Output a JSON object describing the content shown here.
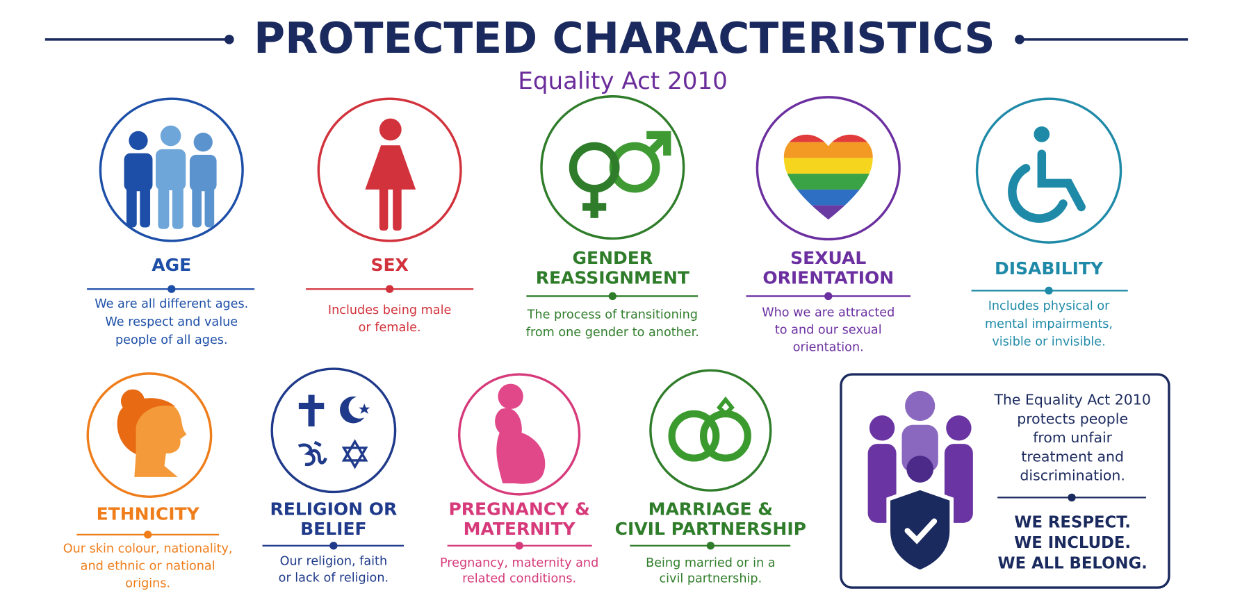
{
  "header": {
    "title": "PROTECTED CHARACTERISTICS",
    "subtitle": "Equality Act 2010"
  },
  "items": [
    {
      "title": [
        "AGE"
      ],
      "description": [
        "We are all different ages.",
        "We respect and value",
        "people of all ages."
      ],
      "color": "#1d4fa8"
    },
    {
      "title": [
        "SEX"
      ],
      "description": [
        "Includes being male",
        "or female."
      ],
      "color": "#d2323c"
    },
    {
      "title": [
        "GENDER",
        "REASSIGNMENT"
      ],
      "description": [
        "The process of transitioning",
        "from one gender to another."
      ],
      "color": "#2f7d2a"
    },
    {
      "title": [
        "SEXUAL",
        "ORIENTATION"
      ],
      "description": [
        "Who we are attracted",
        "to and our sexual",
        "orientation."
      ],
      "color": "#6b2fa0"
    },
    {
      "title": [
        "DISABILITY"
      ],
      "description": [
        "Includes physical or",
        "mental impairments,",
        "visible or invisible."
      ],
      "color": "#1f8aa8"
    },
    {
      "title": [
        "ETHNICITY"
      ],
      "description": [
        "Our skin colour, nationality,",
        "and ethnic or national",
        "origins."
      ],
      "color": "#ef7d1a"
    },
    {
      "title": [
        "RELIGION OR",
        "BELIEF"
      ],
      "description": [
        "Our religion, faith",
        "or lack of religion."
      ],
      "color": "#1f3a8a"
    },
    {
      "title": [
        "PREGNANCY &",
        "MATERNITY"
      ],
      "description": [
        "Pregnancy, maternity and",
        "related conditions."
      ],
      "color": "#d63a7a"
    },
    {
      "title": [
        "MARRIAGE &",
        "CIVIL PARTNERSHIP"
      ],
      "description": [
        "Being married or in a",
        "civil partnership."
      ],
      "color": "#2f7d2a"
    }
  ],
  "callout": {
    "text": [
      "The Equality Act 2010",
      "protects people",
      "from unfair",
      "treatment and",
      "discrimination."
    ],
    "slogan": [
      "WE RESPECT.",
      "WE INCLUDE.",
      "WE ALL BELONG."
    ]
  }
}
